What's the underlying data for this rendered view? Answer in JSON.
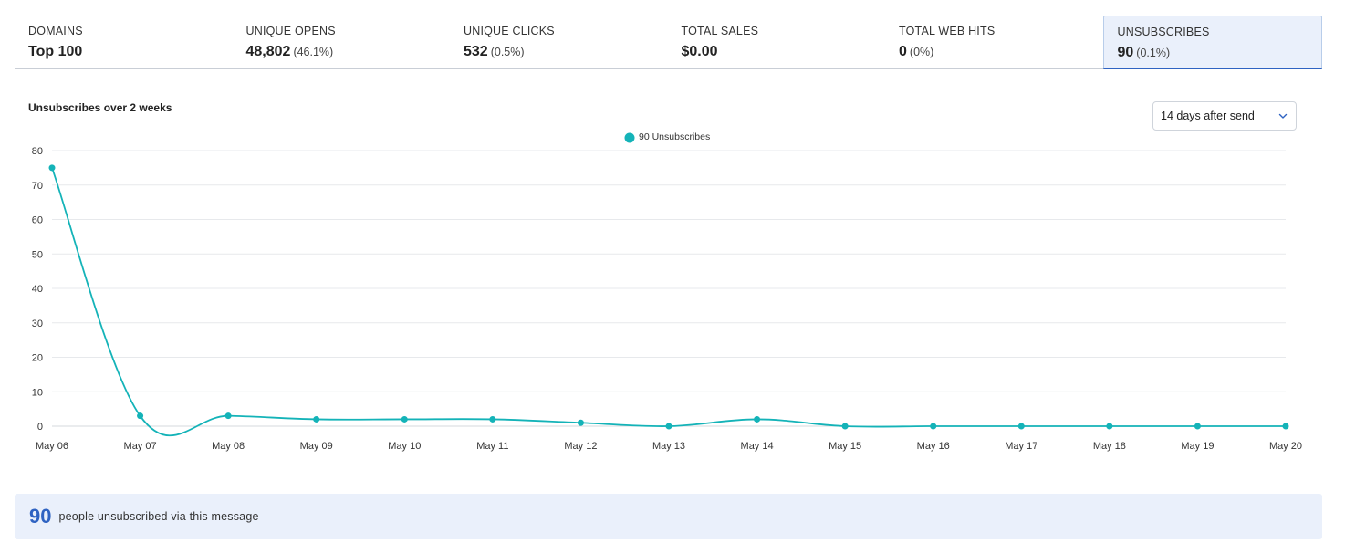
{
  "stats": [
    {
      "label": "DOMAINS",
      "value": "Top 100",
      "pct": ""
    },
    {
      "label": "UNIQUE OPENS",
      "value": "48,802",
      "pct": "(46.1%)"
    },
    {
      "label": "UNIQUE CLICKS",
      "value": "532",
      "pct": "(0.5%)"
    },
    {
      "label": "TOTAL SALES",
      "value": "$0.00",
      "pct": ""
    },
    {
      "label": "TOTAL WEB HITS",
      "value": "0",
      "pct": "(0%)"
    },
    {
      "label": "UNSUBSCRIBES",
      "value": "90",
      "pct": "(0.1%)"
    }
  ],
  "active_tab": "UNSUBSCRIBES",
  "range_select": {
    "value": "14 days after send"
  },
  "icons": {
    "range_select": "chevron-down-icon"
  },
  "colors": {
    "series": "#14b3b8",
    "accent": "#2f63c2",
    "active_bg": "#eaf0fb"
  },
  "chart_data": {
    "type": "line",
    "title": "Unsubscribes over 2 weeks",
    "categories": [
      "May 06",
      "May 07",
      "May 08",
      "May 09",
      "May 10",
      "May 11",
      "May 12",
      "May 13",
      "May 14",
      "May 15",
      "May 16",
      "May 17",
      "May 18",
      "May 19",
      "May 20"
    ],
    "series": [
      {
        "name": "90 Unsubscribes",
        "values": [
          75,
          3,
          3,
          2,
          2,
          2,
          1,
          0,
          2,
          0,
          0,
          0,
          0,
          0,
          0
        ]
      }
    ],
    "ylim": [
      0,
      80
    ],
    "yticks": [
      0,
      10,
      20,
      30,
      40,
      50,
      60,
      70,
      80
    ],
    "grid": true,
    "legend": "top-center",
    "smooth": true
  },
  "summary": {
    "count": "90",
    "text": "people unsubscribed via this message"
  }
}
